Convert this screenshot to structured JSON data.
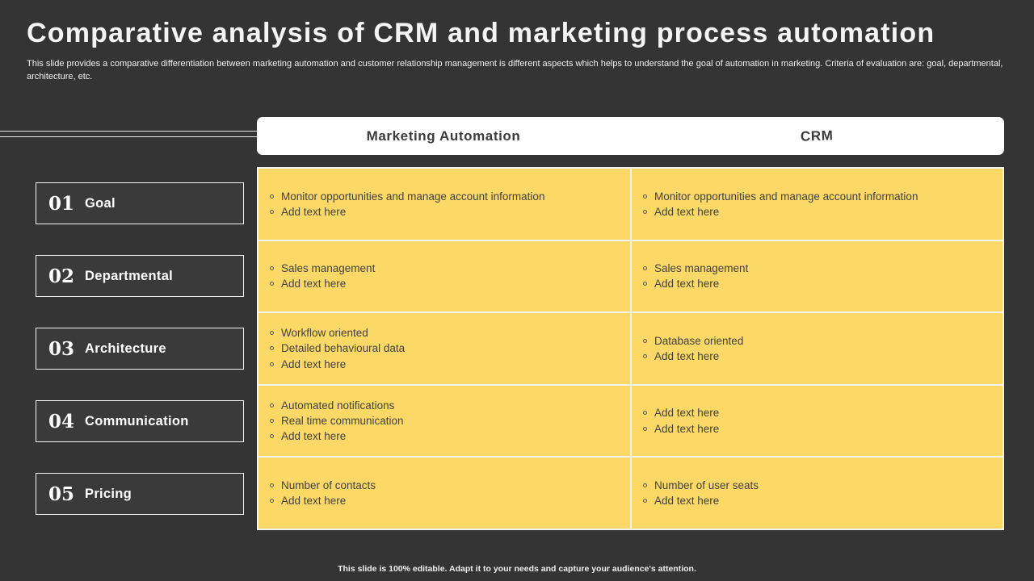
{
  "slide": {
    "title": "Comparative analysis of CRM and marketing process automation",
    "description": "This slide provides a comparative differentiation between marketing automation and customer relationship management is different aspects which helps to understand the goal of automation in marketing. Criteria of evaluation are: goal, departmental, architecture, etc.",
    "footer": "This slide is 100% editable. Adapt it to your needs and capture your audience's attention."
  },
  "table": {
    "headers": {
      "col1": "Marketing Automation",
      "col2": "CRM"
    },
    "rows": [
      {
        "number": "01",
        "label": "Goal",
        "ma": [
          "Monitor opportunities and manage account information",
          "Add text here"
        ],
        "crm": [
          "Monitor opportunities and manage account information",
          "Add text here"
        ]
      },
      {
        "number": "02",
        "label": "Departmental",
        "ma": [
          "Sales management",
          "Add text here"
        ],
        "crm": [
          "Sales management",
          "Add text here"
        ]
      },
      {
        "number": "03",
        "label": "Architecture",
        "ma": [
          "Workflow oriented",
          "Detailed behavioural data",
          "Add text here"
        ],
        "crm": [
          "Database oriented",
          "Add text here"
        ]
      },
      {
        "number": "04",
        "label": "Communication",
        "ma": [
          "Automated notifications",
          "Real time communication",
          "Add text here"
        ],
        "crm": [
          "Add text here",
          "Add text here"
        ]
      },
      {
        "number": "05",
        "label": "Pricing",
        "ma": [
          "Number of contacts",
          "Add text here"
        ],
        "crm": [
          "Number of user seats",
          "Add text here"
        ]
      }
    ]
  },
  "colors": {
    "background": "#343434",
    "cell_yellow": "#FCD967",
    "header_bg": "#FFFFFF",
    "text_dark": "#414141",
    "text_white": "#FFFFFF"
  }
}
